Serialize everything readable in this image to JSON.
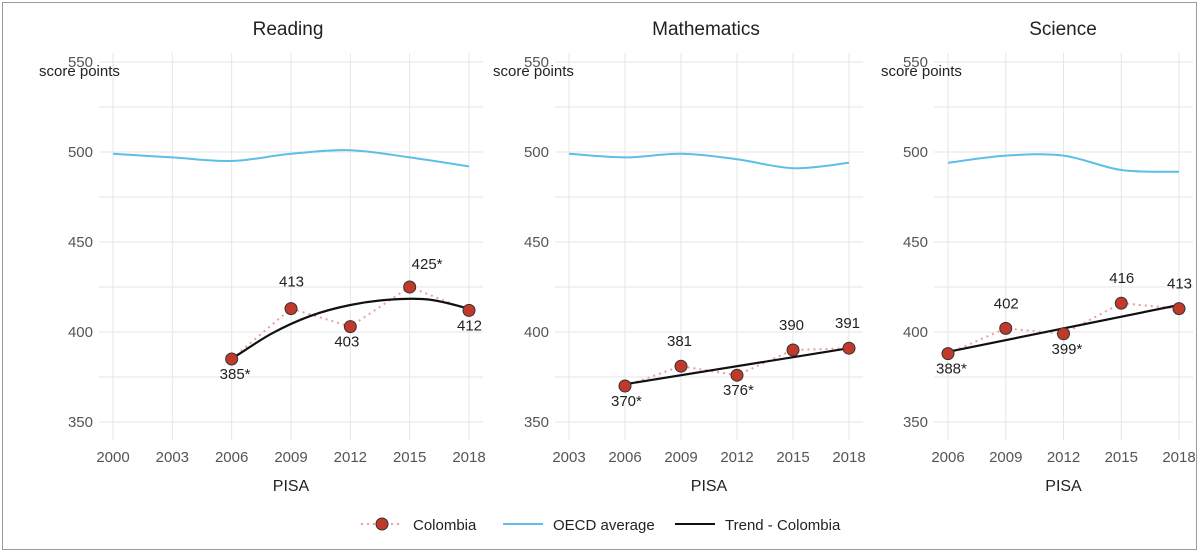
{
  "colors": {
    "colombia": "#c0392b",
    "colombia_dots": "#e8a09a",
    "oecd": "#5bbfe6",
    "trend": "#111111"
  },
  "legend": {
    "colombia": "Colombia",
    "oecd": "OECD average",
    "trend": "Trend - Colombia",
    "position": "bottom"
  },
  "chart_data": [
    {
      "type": "line",
      "title": "Reading",
      "ylabel": "score points",
      "xlabel": "PISA",
      "ylim": [
        340,
        555
      ],
      "yticks": [
        350,
        400,
        450,
        500,
        550
      ],
      "xticks": [
        "2000",
        "2003",
        "2006",
        "2009",
        "2012",
        "2015",
        "2018"
      ],
      "grid": true,
      "series": [
        {
          "name": "OECD average",
          "x": [
            2000,
            2003,
            2006,
            2009,
            2012,
            2015,
            2018
          ],
          "values": [
            499,
            497,
            495,
            499,
            501,
            497,
            492
          ]
        },
        {
          "name": "Colombia",
          "x": [
            2006,
            2009,
            2012,
            2015,
            2018
          ],
          "values": [
            385,
            413,
            403,
            425,
            412
          ],
          "labels": [
            "385*",
            "413",
            "403",
            "425*",
            "412"
          ]
        },
        {
          "name": "Trend - Colombia",
          "x": [
            2006,
            2008,
            2010,
            2012,
            2014,
            2016,
            2018
          ],
          "values": [
            385,
            399,
            409,
            415,
            418,
            418,
            413
          ]
        }
      ]
    },
    {
      "type": "line",
      "title": "Mathematics",
      "ylabel": "score points",
      "xlabel": "PISA",
      "ylim": [
        340,
        555
      ],
      "yticks": [
        350,
        400,
        450,
        500,
        550
      ],
      "xticks": [
        "2003",
        "2006",
        "2009",
        "2012",
        "2015",
        "2018"
      ],
      "grid": true,
      "series": [
        {
          "name": "OECD average",
          "x": [
            2003,
            2006,
            2009,
            2012,
            2015,
            2018
          ],
          "values": [
            499,
            497,
            499,
            496,
            491,
            494
          ]
        },
        {
          "name": "Colombia",
          "x": [
            2006,
            2009,
            2012,
            2015,
            2018
          ],
          "values": [
            370,
            381,
            376,
            390,
            391
          ],
          "labels": [
            "370*",
            "381",
            "376*",
            "390",
            "391"
          ]
        },
        {
          "name": "Trend - Colombia",
          "x": [
            2006,
            2018
          ],
          "values": [
            371,
            391
          ]
        }
      ]
    },
    {
      "type": "line",
      "title": "Science",
      "ylabel": "score points",
      "xlabel": "PISA",
      "ylim": [
        340,
        555
      ],
      "yticks": [
        350,
        400,
        450,
        500,
        550
      ],
      "xticks": [
        "2006",
        "2009",
        "2012",
        "2015",
        "2018"
      ],
      "grid": true,
      "series": [
        {
          "name": "OECD average",
          "x": [
            2006,
            2009,
            2012,
            2015,
            2018
          ],
          "values": [
            494,
            498,
            498,
            490,
            489
          ]
        },
        {
          "name": "Colombia",
          "x": [
            2006,
            2009,
            2012,
            2015,
            2018
          ],
          "values": [
            388,
            402,
            399,
            416,
            413
          ],
          "labels": [
            "388*",
            "402",
            "399*",
            "416",
            "413"
          ]
        },
        {
          "name": "Trend - Colombia",
          "x": [
            2006,
            2018
          ],
          "values": [
            389,
            415
          ]
        }
      ]
    }
  ]
}
